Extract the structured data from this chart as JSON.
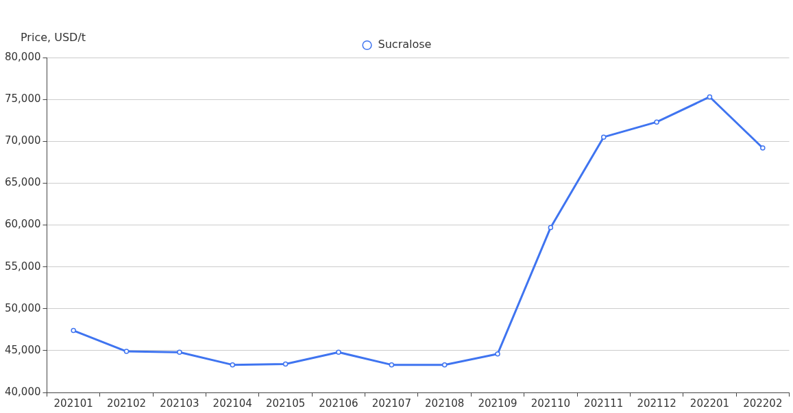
{
  "chart_data": {
    "type": "line",
    "ylabel": "Price, USD/t",
    "categories": [
      "202101",
      "202102",
      "202103",
      "202104",
      "202105",
      "202106",
      "202107",
      "202108",
      "202109",
      "202110",
      "202111",
      "202112",
      "202201",
      "202202"
    ],
    "series": [
      {
        "name": "Sucralose",
        "color": "#3f74f0",
        "values": [
          47400,
          44900,
          44800,
          43300,
          43400,
          44800,
          43300,
          43300,
          44600,
          59700,
          70500,
          72300,
          75300,
          69200
        ]
      }
    ],
    "ylim": [
      40000,
      80000
    ],
    "yticks": [
      {
        "value": 40000,
        "label": "40,000"
      },
      {
        "value": 45000,
        "label": "45,000"
      },
      {
        "value": 50000,
        "label": "50,000"
      },
      {
        "value": 55000,
        "label": "55,000"
      },
      {
        "value": 60000,
        "label": "60,000"
      },
      {
        "value": 65000,
        "label": "65,000"
      },
      {
        "value": 70000,
        "label": "70,000"
      },
      {
        "value": 75000,
        "label": "75,000"
      },
      {
        "value": 80000,
        "label": "80,000"
      }
    ],
    "grid": "y",
    "legend": "top",
    "marker": "circle",
    "line_style": "solid"
  }
}
